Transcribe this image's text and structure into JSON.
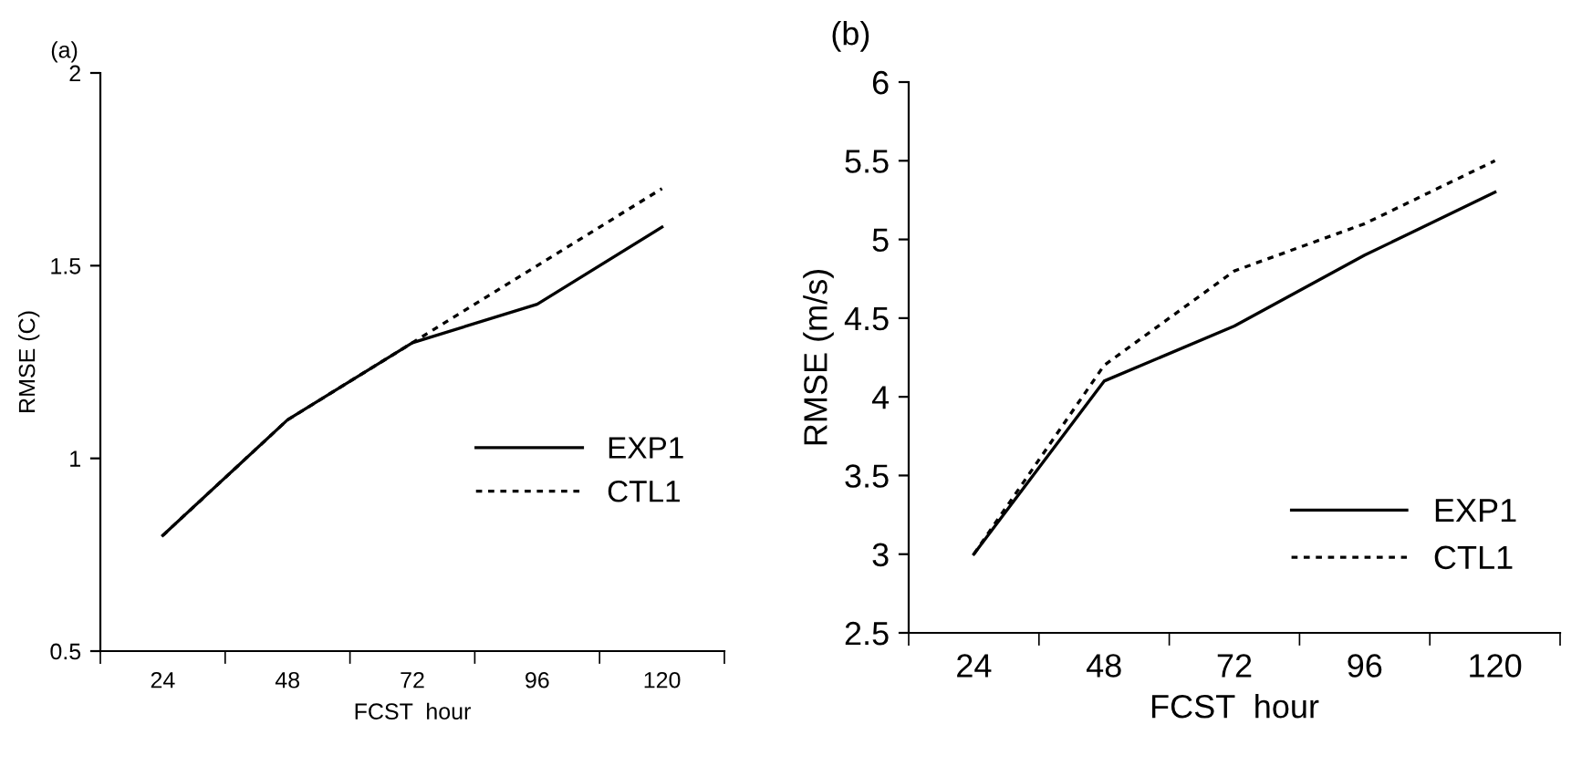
{
  "chart_data": [
    {
      "type": "line",
      "title": "(a)",
      "xlabel": "FCST  hour",
      "ylabel": "RMSE (C)",
      "categories": [
        "24",
        "48",
        "72",
        "96",
        "120"
      ],
      "ylim": [
        0.5,
        2
      ],
      "yticks": [
        0.5,
        1,
        1.5,
        2
      ],
      "grid": false,
      "legend": "bottom right",
      "marker": "none",
      "series": [
        {
          "name": "EXP1",
          "color": "#000000",
          "line_style": "solid",
          "values": [
            0.8,
            1.1,
            1.3,
            1.4,
            1.6
          ]
        },
        {
          "name": "CTL1",
          "color": "#000000",
          "line_style": "dotted",
          "values": [
            0.8,
            1.1,
            1.3,
            1.5,
            1.7
          ]
        }
      ]
    },
    {
      "type": "line",
      "title": "(b)",
      "xlabel": "FCST  hour",
      "ylabel": "RMSE (m/s)",
      "categories": [
        "24",
        "48",
        "72",
        "96",
        "120"
      ],
      "ylim": [
        2.5,
        6
      ],
      "yticks": [
        2.5,
        3,
        3.5,
        4,
        4.5,
        5,
        5.5,
        6
      ],
      "grid": false,
      "legend": "bottom right",
      "marker": "none",
      "series": [
        {
          "name": "EXP1",
          "color": "#000000",
          "line_style": "solid",
          "values": [
            3.0,
            4.1,
            4.45,
            4.9,
            5.3
          ]
        },
        {
          "name": "CTL1",
          "color": "#000000",
          "line_style": "dotted",
          "values": [
            3.0,
            4.2,
            4.8,
            5.1,
            5.5
          ]
        }
      ]
    }
  ]
}
